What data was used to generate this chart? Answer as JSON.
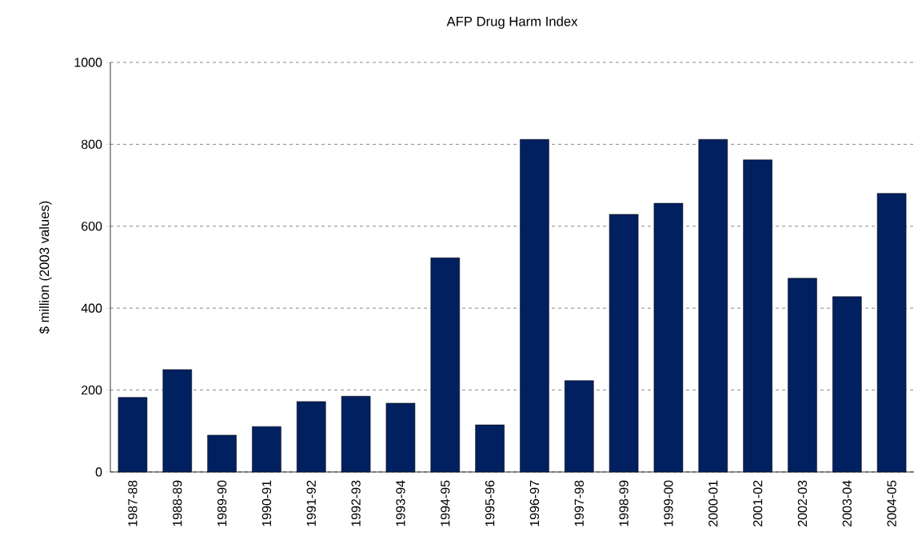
{
  "chart_data": {
    "type": "bar",
    "title": "AFP Drug Harm Index",
    "ylabel": "$ million (2003 values)",
    "categories": [
      "1987-88",
      "1988-89",
      "1989-90",
      "1990-91",
      "1991-92",
      "1992-93",
      "1993-94",
      "1994-95",
      "1995-96",
      "1996-97",
      "1997-98",
      "1998-99",
      "1999-00",
      "2000-01",
      "2001-02",
      "2002-03",
      "2003-04",
      "2004-05"
    ],
    "values": [
      182,
      250,
      90,
      111,
      172,
      185,
      168,
      523,
      115,
      812,
      223,
      629,
      656,
      812,
      762,
      473,
      428,
      680
    ],
    "color": "#002060",
    "ylim": [
      0,
      1000
    ],
    "yticks": [
      0,
      200,
      400,
      600,
      800,
      1000
    ],
    "grid": "y"
  }
}
